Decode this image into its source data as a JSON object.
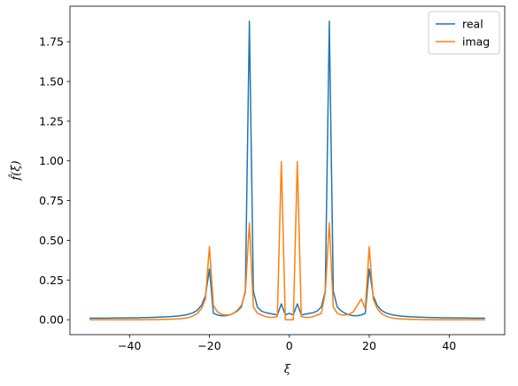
{
  "chart_data": {
    "type": "line",
    "title": "",
    "xlabel": "ξ",
    "ylabel": "f̂(ξ)",
    "xlim": [
      -54.9,
      53.9
    ],
    "ylim": [
      -0.094,
      1.974
    ],
    "xticks": [
      -40,
      -20,
      0,
      20,
      40
    ],
    "yticks": [
      0.0,
      0.25,
      0.5,
      0.75,
      1.0,
      1.25,
      1.5,
      1.75
    ],
    "xtick_labels": [
      "−40",
      "−20",
      "0",
      "20",
      "40"
    ],
    "ytick_labels": [
      "0.00",
      "0.25",
      "0.50",
      "0.75",
      "1.00",
      "1.25",
      "1.50",
      "1.75"
    ],
    "grid": false,
    "legend_position": "top-right",
    "x": [
      -50,
      -49,
      -48,
      -47,
      -46,
      -45,
      -44,
      -43,
      -42,
      -41,
      -40,
      -39,
      -38,
      -37,
      -36,
      -35,
      -34,
      -33,
      -32,
      -31,
      -30,
      -29,
      -28,
      -27,
      -26,
      -25,
      -24,
      -23,
      -22,
      -21,
      -20,
      -19,
      -18,
      -17,
      -16,
      -15,
      -14,
      -13,
      -12,
      -11,
      -10,
      -9,
      -8,
      -7,
      -6,
      -5,
      -4,
      -3,
      -2,
      -1,
      0,
      1,
      2,
      3,
      4,
      5,
      6,
      7,
      8,
      9,
      10,
      11,
      12,
      13,
      14,
      15,
      16,
      17,
      18,
      19,
      20,
      21,
      22,
      23,
      24,
      25,
      26,
      27,
      28,
      29,
      30,
      31,
      32,
      33,
      34,
      35,
      36,
      37,
      38,
      39,
      40,
      41,
      42,
      43,
      44,
      45,
      46,
      47,
      48,
      49
    ],
    "series": [
      {
        "name": "real",
        "color": "#1f77b4",
        "values": [
          0.01,
          0.01,
          0.01,
          0.01,
          0.01,
          0.01,
          0.011,
          0.011,
          0.011,
          0.011,
          0.012,
          0.012,
          0.012,
          0.013,
          0.013,
          0.014,
          0.015,
          0.016,
          0.017,
          0.018,
          0.019,
          0.021,
          0.023,
          0.026,
          0.03,
          0.036,
          0.045,
          0.06,
          0.09,
          0.15,
          0.32,
          0.04,
          0.03,
          0.025,
          0.025,
          0.03,
          0.04,
          0.055,
          0.08,
          0.18,
          1.88,
          0.18,
          0.08,
          0.055,
          0.045,
          0.04,
          0.035,
          0.03,
          0.1,
          0.03,
          0.04,
          0.03,
          0.1,
          0.03,
          0.035,
          0.04,
          0.045,
          0.055,
          0.08,
          0.18,
          1.88,
          0.18,
          0.08,
          0.055,
          0.04,
          0.03,
          0.025,
          0.025,
          0.03,
          0.04,
          0.32,
          0.15,
          0.09,
          0.06,
          0.045,
          0.036,
          0.03,
          0.026,
          0.023,
          0.021,
          0.019,
          0.018,
          0.017,
          0.016,
          0.015,
          0.014,
          0.013,
          0.013,
          0.012,
          0.012,
          0.012,
          0.011,
          0.011,
          0.011,
          0.011,
          0.01,
          0.01,
          0.01,
          0.01,
          0.01
        ]
      },
      {
        "name": "imag",
        "color": "#ff7f0e",
        "values": [
          0.0,
          0.0,
          0.0,
          0.0,
          0.0,
          0.0,
          0.0,
          0.0,
          0.0,
          0.0,
          0.0,
          0.0,
          0.0,
          0.0,
          0.0,
          0.001,
          0.001,
          0.001,
          0.002,
          0.002,
          0.003,
          0.004,
          0.005,
          0.007,
          0.01,
          0.015,
          0.025,
          0.04,
          0.07,
          0.13,
          0.46,
          0.09,
          0.05,
          0.035,
          0.03,
          0.03,
          0.04,
          0.06,
          0.09,
          0.17,
          0.61,
          0.08,
          0.04,
          0.03,
          0.02,
          0.015,
          0.015,
          0.02,
          0.995,
          0.0,
          0.0,
          0.0,
          0.995,
          0.02,
          0.015,
          0.015,
          0.02,
          0.03,
          0.04,
          0.17,
          0.61,
          0.08,
          0.04,
          0.03,
          0.03,
          0.035,
          0.05,
          0.09,
          0.13,
          0.07,
          0.46,
          0.13,
          0.07,
          0.04,
          0.025,
          0.015,
          0.01,
          0.007,
          0.005,
          0.004,
          0.003,
          0.002,
          0.002,
          0.001,
          0.001,
          0.001,
          0.0,
          0.0,
          0.0,
          0.0,
          0.0,
          0.0,
          0.0,
          0.0,
          0.0,
          0.0,
          0.0,
          0.0,
          0.0,
          0.0
        ]
      }
    ]
  }
}
